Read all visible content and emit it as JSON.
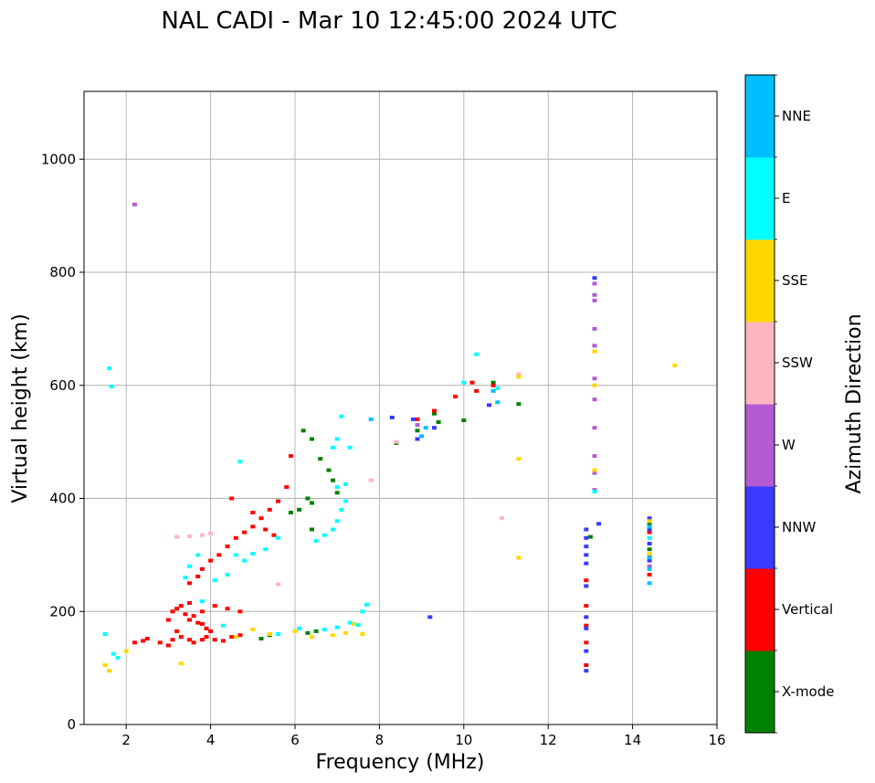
{
  "chart_data": {
    "type": "scatter",
    "title": "NAL CADI - Mar 10 12:45:00 2024 UTC",
    "xlabel": "Frequency (MHz)",
    "ylabel": "Virtual height (km)",
    "xlim": [
      1,
      16
    ],
    "ylim": [
      0,
      1120
    ],
    "xticks": [
      2,
      4,
      6,
      8,
      10,
      12,
      14,
      16
    ],
    "yticks": [
      0,
      200,
      400,
      600,
      800,
      1000
    ],
    "grid": true,
    "colorbar": {
      "label": "Azimuth Direction",
      "categories": [
        {
          "name": "X-mode",
          "color": "#008000"
        },
        {
          "name": "Vertical",
          "color": "#ff0000"
        },
        {
          "name": "NNW",
          "color": "#3a3aff"
        },
        {
          "name": "W",
          "color": "#b45ad2"
        },
        {
          "name": "SSW",
          "color": "#ffb6c1"
        },
        {
          "name": "SSE",
          "color": "#ffd700"
        },
        {
          "name": "E",
          "color": "#00ffff"
        },
        {
          "name": "NNE",
          "color": "#00bfff"
        }
      ]
    },
    "series": [
      {
        "name": "X-mode",
        "points": [
          [
            6.2,
            520
          ],
          [
            6.4,
            505
          ],
          [
            6.6,
            470
          ],
          [
            6.8,
            450
          ],
          [
            6.9,
            432
          ],
          [
            6.3,
            400
          ],
          [
            6.4,
            392
          ],
          [
            6.1,
            380
          ],
          [
            5.9,
            375
          ],
          [
            6.4,
            345
          ],
          [
            5.2,
            152
          ],
          [
            5.4,
            158
          ],
          [
            6.3,
            162
          ],
          [
            6.5,
            165
          ],
          [
            8.4,
            498
          ],
          [
            8.9,
            520
          ],
          [
            9.3,
            550
          ],
          [
            9.4,
            535
          ],
          [
            10.0,
            538
          ],
          [
            10.7,
            605
          ],
          [
            11.3,
            567
          ],
          [
            13.0,
            332
          ],
          [
            14.4,
            355
          ],
          [
            14.4,
            310
          ],
          [
            7.0,
            410
          ]
        ]
      },
      {
        "name": "Vertical",
        "points": [
          [
            2.2,
            145
          ],
          [
            2.4,
            148
          ],
          [
            2.5,
            152
          ],
          [
            2.8,
            145
          ],
          [
            3.0,
            140
          ],
          [
            3.1,
            150
          ],
          [
            3.2,
            165
          ],
          [
            3.3,
            155
          ],
          [
            3.5,
            150
          ],
          [
            3.6,
            145
          ],
          [
            3.8,
            150
          ],
          [
            3.9,
            155
          ],
          [
            4.1,
            150
          ],
          [
            4.3,
            148
          ],
          [
            4.5,
            155
          ],
          [
            4.7,
            158
          ],
          [
            3.1,
            200
          ],
          [
            3.2,
            205
          ],
          [
            3.3,
            210
          ],
          [
            3.4,
            195
          ],
          [
            3.5,
            185
          ],
          [
            3.6,
            192
          ],
          [
            3.7,
            180
          ],
          [
            3.8,
            178
          ],
          [
            3.9,
            170
          ],
          [
            4.0,
            165
          ],
          [
            3.0,
            185
          ],
          [
            3.5,
            215
          ],
          [
            3.8,
            200
          ],
          [
            4.1,
            210
          ],
          [
            4.4,
            205
          ],
          [
            4.7,
            200
          ],
          [
            3.5,
            250
          ],
          [
            3.7,
            262
          ],
          [
            3.8,
            275
          ],
          [
            4.0,
            290
          ],
          [
            4.2,
            300
          ],
          [
            4.4,
            315
          ],
          [
            4.6,
            330
          ],
          [
            4.8,
            340
          ],
          [
            5.0,
            350
          ],
          [
            5.2,
            365
          ],
          [
            5.4,
            380
          ],
          [
            5.6,
            395
          ],
          [
            5.8,
            420
          ],
          [
            5.0,
            375
          ],
          [
            5.3,
            345
          ],
          [
            5.5,
            335
          ],
          [
            5.9,
            475
          ],
          [
            4.5,
            400
          ],
          [
            8.9,
            540
          ],
          [
            9.3,
            555
          ],
          [
            9.8,
            580
          ],
          [
            10.3,
            590
          ],
          [
            10.2,
            605
          ],
          [
            10.7,
            600
          ],
          [
            12.9,
            210
          ],
          [
            12.9,
            175
          ],
          [
            12.9,
            145
          ],
          [
            12.9,
            105
          ],
          [
            12.9,
            255
          ],
          [
            14.4,
            265
          ],
          [
            14.4,
            340
          ]
        ]
      },
      {
        "name": "NNW",
        "points": [
          [
            8.9,
            505
          ],
          [
            8.8,
            540
          ],
          [
            8.3,
            543
          ],
          [
            9.3,
            525
          ],
          [
            10.6,
            565
          ],
          [
            12.9,
            345
          ],
          [
            12.9,
            330
          ],
          [
            12.9,
            315
          ],
          [
            12.9,
            300
          ],
          [
            12.9,
            285
          ],
          [
            12.9,
            245
          ],
          [
            12.9,
            190
          ],
          [
            12.9,
            170
          ],
          [
            12.9,
            130
          ],
          [
            12.9,
            95
          ],
          [
            13.1,
            790
          ],
          [
            13.2,
            355
          ],
          [
            14.4,
            290
          ],
          [
            14.4,
            300
          ],
          [
            14.4,
            320
          ],
          [
            14.4,
            345
          ],
          [
            14.4,
            365
          ],
          [
            9.2,
            190
          ]
        ]
      },
      {
        "name": "W",
        "points": [
          [
            2.2,
            920
          ],
          [
            13.1,
            780
          ],
          [
            13.1,
            760
          ],
          [
            13.1,
            750
          ],
          [
            13.1,
            700
          ],
          [
            13.1,
            670
          ],
          [
            13.1,
            612
          ],
          [
            13.1,
            575
          ],
          [
            13.1,
            525
          ],
          [
            13.1,
            475
          ],
          [
            13.1,
            445
          ],
          [
            13.1,
            415
          ],
          [
            8.9,
            530
          ],
          [
            14.4,
            280
          ]
        ]
      },
      {
        "name": "SSW",
        "points": [
          [
            3.2,
            332
          ],
          [
            3.5,
            333
          ],
          [
            3.8,
            335
          ],
          [
            4.0,
            338
          ],
          [
            10.9,
            365
          ],
          [
            11.3,
            620
          ],
          [
            5.6,
            248
          ],
          [
            7.8,
            432
          ],
          [
            8.4,
            500
          ]
        ]
      },
      {
        "name": "SSE",
        "points": [
          [
            1.5,
            105
          ],
          [
            1.6,
            95
          ],
          [
            2.0,
            130
          ],
          [
            3.3,
            108
          ],
          [
            4.6,
            155
          ],
          [
            5.0,
            168
          ],
          [
            5.4,
            160
          ],
          [
            6.0,
            165
          ],
          [
            6.4,
            155
          ],
          [
            6.9,
            158
          ],
          [
            7.2,
            162
          ],
          [
            7.6,
            160
          ],
          [
            7.4,
            178
          ],
          [
            11.3,
            470
          ],
          [
            11.3,
            295
          ],
          [
            13.1,
            660
          ],
          [
            13.1,
            600
          ],
          [
            13.1,
            450
          ],
          [
            15.0,
            635
          ],
          [
            14.4,
            360
          ],
          [
            14.4,
            302
          ],
          [
            11.3,
            615
          ]
        ]
      },
      {
        "name": "E",
        "points": [
          [
            1.6,
            630
          ],
          [
            1.65,
            598
          ],
          [
            1.5,
            160
          ],
          [
            1.7,
            125
          ],
          [
            1.8,
            118
          ],
          [
            3.4,
            260
          ],
          [
            3.7,
            300
          ],
          [
            3.5,
            280
          ],
          [
            4.6,
            300
          ],
          [
            4.8,
            290
          ],
          [
            5.0,
            302
          ],
          [
            5.3,
            310
          ],
          [
            5.6,
            330
          ],
          [
            6.5,
            325
          ],
          [
            6.7,
            335
          ],
          [
            6.9,
            345
          ],
          [
            7.0,
            360
          ],
          [
            7.1,
            380
          ],
          [
            7.2,
            395
          ],
          [
            7.0,
            420
          ],
          [
            7.2,
            425
          ],
          [
            6.9,
            490
          ],
          [
            7.0,
            505
          ],
          [
            7.3,
            490
          ],
          [
            7.1,
            545
          ],
          [
            4.7,
            465
          ],
          [
            4.1,
            255
          ],
          [
            4.4,
            265
          ],
          [
            3.8,
            218
          ],
          [
            4.3,
            175
          ],
          [
            5.6,
            160
          ],
          [
            6.1,
            170
          ],
          [
            6.7,
            168
          ],
          [
            7.0,
            172
          ],
          [
            7.3,
            180
          ],
          [
            7.5,
            176
          ],
          [
            7.6,
            200
          ],
          [
            7.7,
            212
          ],
          [
            10.3,
            655
          ],
          [
            10.0,
            605
          ],
          [
            10.8,
            595
          ],
          [
            13.1,
            412
          ],
          [
            14.4,
            330
          ]
        ]
      },
      {
        "name": "NNE",
        "points": [
          [
            9.0,
            510
          ],
          [
            9.1,
            525
          ],
          [
            10.8,
            570
          ],
          [
            10.7,
            590
          ],
          [
            14.4,
            250
          ],
          [
            14.4,
            275
          ],
          [
            14.4,
            295
          ],
          [
            14.4,
            350
          ],
          [
            7.8,
            540
          ]
        ]
      }
    ]
  }
}
